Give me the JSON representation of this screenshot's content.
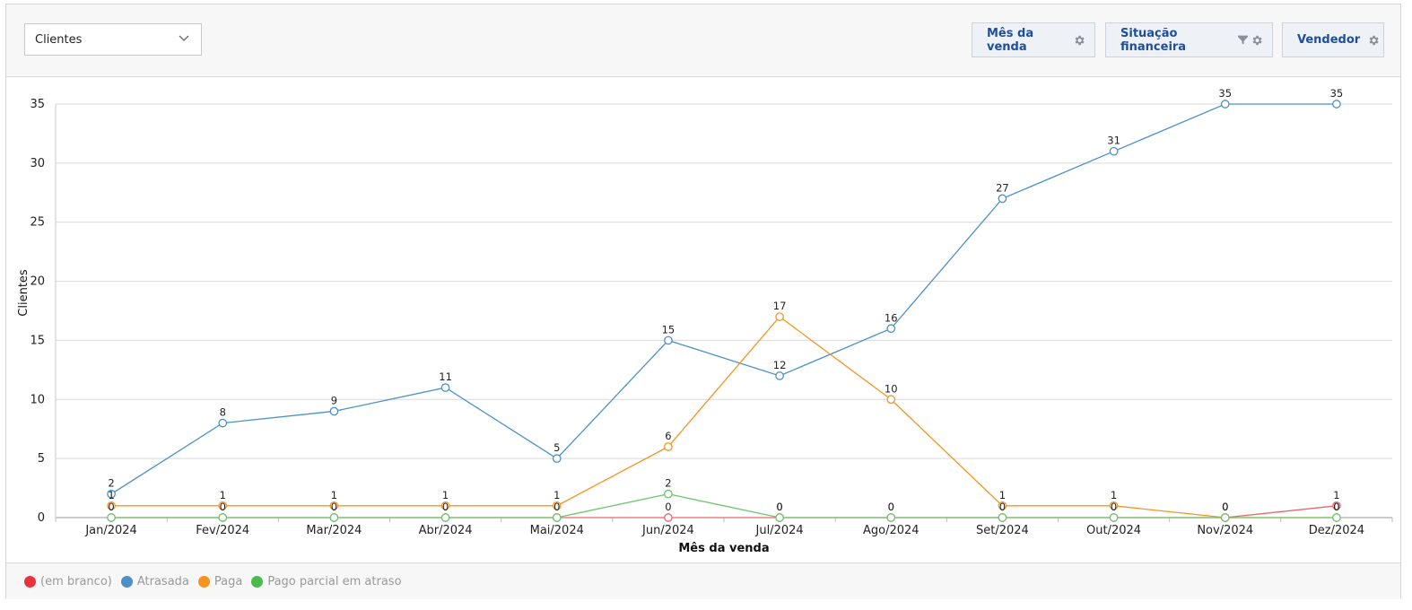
{
  "toolbar": {
    "measure_select": "Clientes",
    "chips": [
      {
        "label": "Mês da venda",
        "icons": [
          "gear-icon"
        ]
      },
      {
        "label": "Situação financeira",
        "icons": [
          "filter-icon",
          "gear-icon"
        ]
      },
      {
        "label": "Vendedor",
        "icons": [
          "gear-icon"
        ]
      }
    ]
  },
  "legend": [
    {
      "label": "(em branco)",
      "color": "#e8333c"
    },
    {
      "label": "Atrasada",
      "color": "#4a90c9"
    },
    {
      "label": "Paga",
      "color": "#f5941f"
    },
    {
      "label": "Pago parcial em atraso",
      "color": "#4cbb4f"
    }
  ],
  "chart_data": {
    "type": "line",
    "xlabel": "Mês da venda",
    "ylabel": "Clientes",
    "ylim": [
      0,
      35
    ],
    "yticks": [
      0,
      5,
      10,
      15,
      20,
      25,
      30,
      35
    ],
    "grid": true,
    "categories": [
      "Jan/2024",
      "Fev/2024",
      "Mar/2024",
      "Abr/2024",
      "Mai/2024",
      "Jun/2024",
      "Jul/2024",
      "Ago/2024",
      "Set/2024",
      "Out/2024",
      "Nov/2024",
      "Dez/2024"
    ],
    "series": [
      {
        "name": "(em branco)",
        "color": "#e8666c",
        "values": [
          0,
          0,
          0,
          0,
          0,
          0,
          0,
          0,
          0,
          0,
          0,
          1
        ]
      },
      {
        "name": "Atrasada",
        "color": "#4a90c9",
        "values": [
          2,
          8,
          9,
          11,
          5,
          15,
          12,
          16,
          27,
          31,
          35,
          35
        ]
      },
      {
        "name": "Paga",
        "color": "#f5941f",
        "values": [
          1,
          1,
          1,
          1,
          1,
          6,
          17,
          10,
          1,
          1,
          0,
          0
        ]
      },
      {
        "name": "Pago parcial em atraso",
        "color": "#6cc46e",
        "values": [
          0,
          0,
          0,
          0,
          0,
          2,
          0,
          0,
          0,
          0,
          0,
          0
        ]
      }
    ]
  }
}
